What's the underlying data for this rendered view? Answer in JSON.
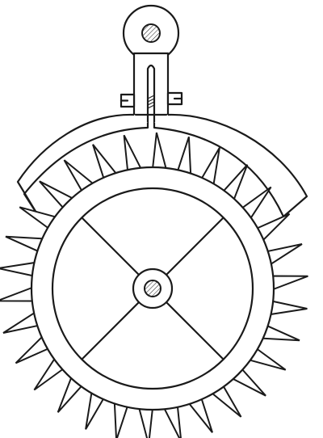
{
  "figure": {
    "subject": "escape-wheel-with-pallet-anchor",
    "style": "engraving",
    "ink_color": "#1a1a1a",
    "paper_color": "#ffffff"
  },
  "escape_wheel": {
    "tooth_count": 30,
    "spoke_count": 4,
    "hub": "hatched-arbor"
  },
  "pallet_anchor": {
    "pivot": "hatched-arbor",
    "adjusting_screws": 2,
    "pallets": 2
  }
}
